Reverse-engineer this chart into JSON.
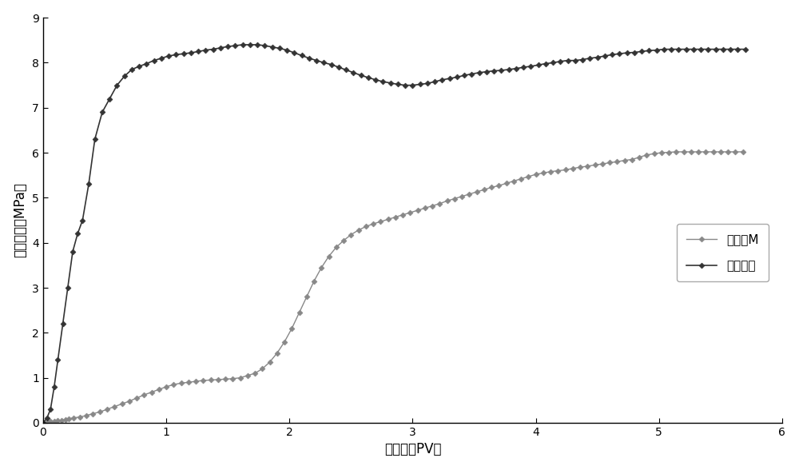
{
  "title": "",
  "xlabel": "注入量（PV）",
  "ylabel": "注入压力（MPa）",
  "xlim": [
    0,
    6
  ],
  "ylim": [
    0,
    9
  ],
  "xticks": [
    0,
    1,
    2,
    3,
    4,
    5,
    6
  ],
  "yticks": [
    0,
    1,
    2,
    3,
    4,
    5,
    6,
    7,
    8,
    9
  ],
  "background_color": "#ffffff",
  "legend_labels": [
    "注菌种M",
    "后继水驱"
  ],
  "series1_color": "#888888",
  "series2_color": "#333333",
  "series1_x": [
    0.0,
    0.03,
    0.06,
    0.09,
    0.12,
    0.15,
    0.18,
    0.21,
    0.25,
    0.3,
    0.35,
    0.4,
    0.46,
    0.52,
    0.58,
    0.64,
    0.7,
    0.76,
    0.82,
    0.88,
    0.94,
    1.0,
    1.06,
    1.12,
    1.18,
    1.24,
    1.3,
    1.36,
    1.42,
    1.48,
    1.54,
    1.6,
    1.66,
    1.72,
    1.78,
    1.84,
    1.9,
    1.96,
    2.02,
    2.08,
    2.14,
    2.2,
    2.26,
    2.32,
    2.38,
    2.44,
    2.5,
    2.56,
    2.62,
    2.68,
    2.74,
    2.8,
    2.86,
    2.92,
    2.98,
    3.04,
    3.1,
    3.16,
    3.22,
    3.28,
    3.34,
    3.4,
    3.46,
    3.52,
    3.58,
    3.64,
    3.7,
    3.76,
    3.82,
    3.88,
    3.94,
    4.0,
    4.06,
    4.12,
    4.18,
    4.24,
    4.3,
    4.36,
    4.42,
    4.48,
    4.54,
    4.6,
    4.66,
    4.72,
    4.78,
    4.84,
    4.9,
    4.96,
    5.02,
    5.08,
    5.14,
    5.2,
    5.26,
    5.32,
    5.38,
    5.44,
    5.5,
    5.56,
    5.62,
    5.68
  ],
  "series1_y": [
    0.0,
    0.02,
    0.03,
    0.04,
    0.05,
    0.06,
    0.07,
    0.09,
    0.11,
    0.13,
    0.16,
    0.2,
    0.24,
    0.3,
    0.36,
    0.42,
    0.48,
    0.55,
    0.62,
    0.68,
    0.74,
    0.8,
    0.85,
    0.88,
    0.9,
    0.92,
    0.94,
    0.95,
    0.96,
    0.97,
    0.98,
    1.0,
    1.05,
    1.1,
    1.2,
    1.35,
    1.55,
    1.8,
    2.1,
    2.45,
    2.8,
    3.15,
    3.45,
    3.7,
    3.9,
    4.05,
    4.18,
    4.28,
    4.36,
    4.42,
    4.47,
    4.52,
    4.57,
    4.62,
    4.67,
    4.72,
    4.77,
    4.82,
    4.87,
    4.93,
    4.98,
    5.03,
    5.08,
    5.13,
    5.18,
    5.23,
    5.27,
    5.32,
    5.37,
    5.42,
    5.47,
    5.52,
    5.55,
    5.58,
    5.6,
    5.62,
    5.65,
    5.68,
    5.7,
    5.73,
    5.75,
    5.78,
    5.8,
    5.83,
    5.85,
    5.9,
    5.95,
    5.98,
    6.0,
    6.01,
    6.02,
    6.02,
    6.02,
    6.02,
    6.02,
    6.02,
    6.02,
    6.02,
    6.02,
    6.02
  ],
  "series2_x": [
    0.0,
    0.03,
    0.06,
    0.09,
    0.12,
    0.16,
    0.2,
    0.24,
    0.28,
    0.32,
    0.37,
    0.42,
    0.48,
    0.54,
    0.6,
    0.66,
    0.72,
    0.78,
    0.84,
    0.9,
    0.96,
    1.02,
    1.08,
    1.14,
    1.2,
    1.26,
    1.32,
    1.38,
    1.44,
    1.5,
    1.56,
    1.62,
    1.68,
    1.74,
    1.8,
    1.86,
    1.92,
    1.98,
    2.04,
    2.1,
    2.16,
    2.22,
    2.28,
    2.34,
    2.4,
    2.46,
    2.52,
    2.58,
    2.64,
    2.7,
    2.76,
    2.82,
    2.88,
    2.94,
    3.0,
    3.06,
    3.12,
    3.18,
    3.24,
    3.3,
    3.36,
    3.42,
    3.48,
    3.54,
    3.6,
    3.66,
    3.72,
    3.78,
    3.84,
    3.9,
    3.96,
    4.02,
    4.08,
    4.14,
    4.2,
    4.26,
    4.32,
    4.38,
    4.44,
    4.5,
    4.56,
    4.62,
    4.68,
    4.74,
    4.8,
    4.86,
    4.92,
    4.98,
    5.04,
    5.1,
    5.16,
    5.22,
    5.28,
    5.34,
    5.4,
    5.46,
    5.52,
    5.58,
    5.64,
    5.7
  ],
  "series2_y": [
    0.0,
    0.1,
    0.3,
    0.8,
    1.4,
    2.2,
    3.0,
    3.8,
    4.2,
    4.5,
    5.3,
    6.3,
    6.9,
    7.2,
    7.5,
    7.7,
    7.85,
    7.92,
    7.98,
    8.05,
    8.1,
    8.15,
    8.18,
    8.2,
    8.22,
    8.25,
    8.28,
    8.3,
    8.33,
    8.36,
    8.38,
    8.4,
    8.4,
    8.4,
    8.38,
    8.35,
    8.32,
    8.28,
    8.22,
    8.16,
    8.1,
    8.05,
    8.0,
    7.96,
    7.9,
    7.84,
    7.78,
    7.72,
    7.67,
    7.62,
    7.58,
    7.55,
    7.52,
    7.5,
    7.5,
    7.52,
    7.54,
    7.58,
    7.62,
    7.65,
    7.68,
    7.72,
    7.75,
    7.78,
    7.8,
    7.82,
    7.83,
    7.85,
    7.87,
    7.9,
    7.92,
    7.95,
    7.98,
    8.0,
    8.03,
    8.05,
    8.05,
    8.07,
    8.1,
    8.12,
    8.15,
    8.18,
    8.2,
    8.22,
    8.23,
    8.25,
    8.27,
    8.28,
    8.3,
    8.3,
    8.3,
    8.3,
    8.3,
    8.3,
    8.3,
    8.3,
    8.3,
    8.3,
    8.3,
    8.3
  ]
}
